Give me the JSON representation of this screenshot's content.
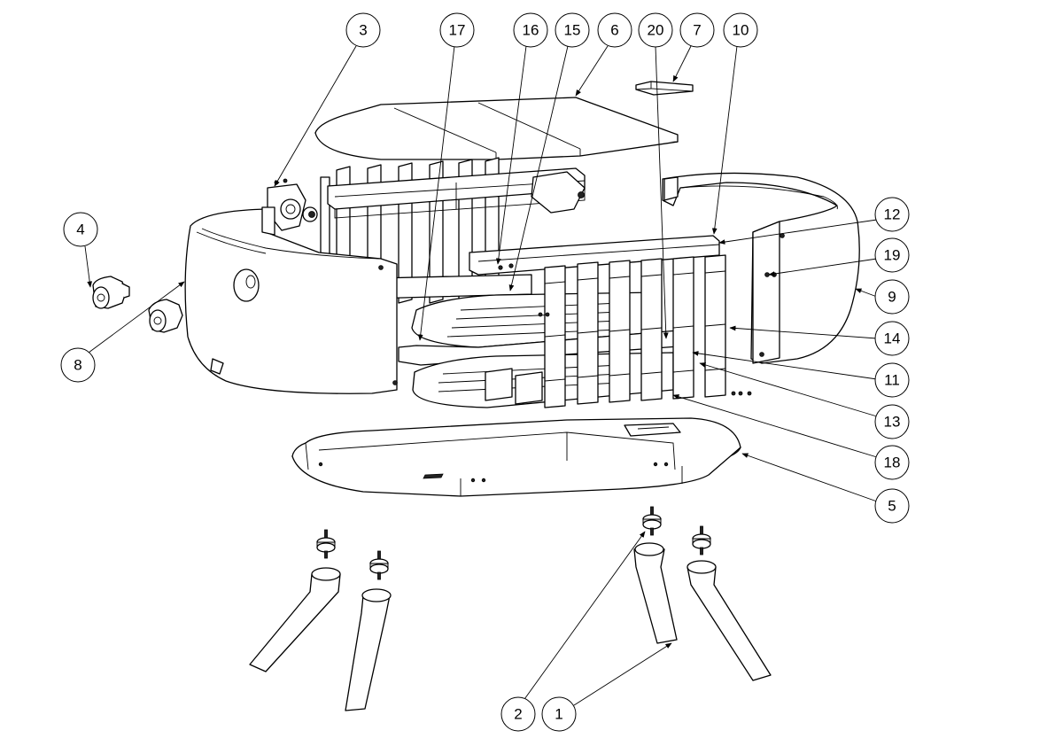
{
  "balloons": [
    {
      "id": "b3",
      "label": "3"
    },
    {
      "id": "b17",
      "label": "17"
    },
    {
      "id": "b16",
      "label": "16"
    },
    {
      "id": "b15",
      "label": "15"
    },
    {
      "id": "b6",
      "label": "6"
    },
    {
      "id": "b20",
      "label": "20"
    },
    {
      "id": "b7",
      "label": "7"
    },
    {
      "id": "b10",
      "label": "10"
    },
    {
      "id": "b12",
      "label": "12"
    },
    {
      "id": "b19",
      "label": "19"
    },
    {
      "id": "b9",
      "label": "9"
    },
    {
      "id": "b14",
      "label": "14"
    },
    {
      "id": "b11",
      "label": "11"
    },
    {
      "id": "b13",
      "label": "13"
    },
    {
      "id": "b18",
      "label": "18"
    },
    {
      "id": "b5",
      "label": "5"
    },
    {
      "id": "b4",
      "label": "4"
    },
    {
      "id": "b8",
      "label": "8"
    },
    {
      "id": "b2",
      "label": "2"
    },
    {
      "id": "b1",
      "label": "1"
    }
  ]
}
